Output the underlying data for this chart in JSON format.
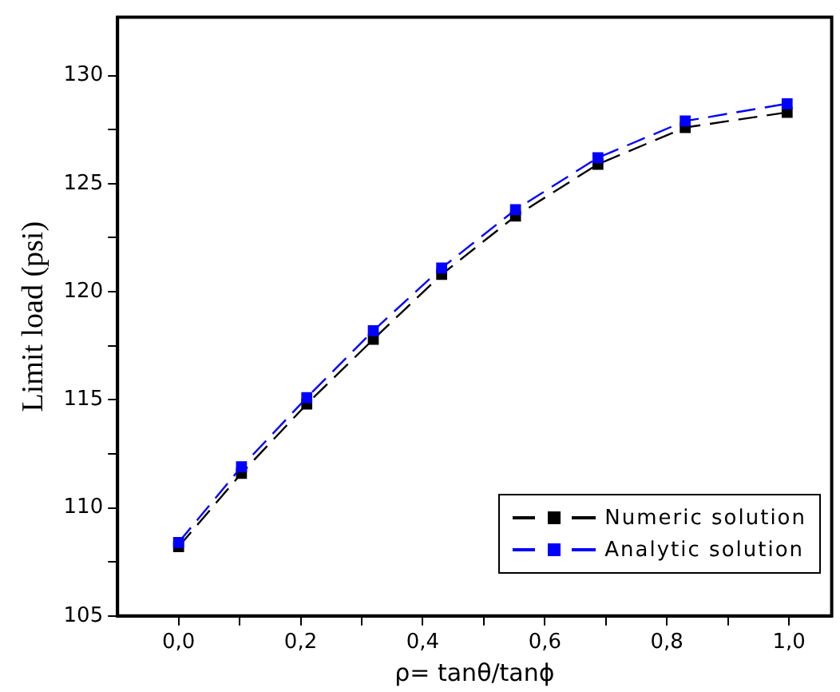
{
  "chart_data": {
    "type": "line",
    "xlabel": "ρ= tanθ/tanϕ",
    "ylabel": "Limit load (psi)",
    "xlim": [
      -0.1,
      1.07
    ],
    "ylim": [
      105,
      132.7
    ],
    "xticks": [
      {
        "value": 0,
        "label": "0,0"
      },
      {
        "value": 0.1,
        "label": null
      },
      {
        "value": 0.2,
        "label": "0,2"
      },
      {
        "value": 0.3,
        "label": null
      },
      {
        "value": 0.4,
        "label": "0,4"
      },
      {
        "value": 0.5,
        "label": null
      },
      {
        "value": 0.6,
        "label": "0,6"
      },
      {
        "value": 0.7,
        "label": null
      },
      {
        "value": 0.8,
        "label": "0,8"
      },
      {
        "value": 0.9,
        "label": null
      },
      {
        "value": 1,
        "label": "1,0"
      }
    ],
    "yticks": [
      105,
      {
        "value": 107.5,
        "label": null
      },
      110,
      {
        "value": 112.5,
        "label": null
      },
      115,
      {
        "value": 117.5,
        "label": null
      },
      120,
      {
        "value": 122.5,
        "label": null
      },
      125,
      {
        "value": 127.5,
        "label": null
      },
      130
    ],
    "x": [
      0,
      0.103,
      0.21,
      0.319,
      0.431,
      0.552,
      0.687,
      0.83,
      0.997
    ],
    "series": [
      {
        "name": "Numeric solution",
        "color": "#000000",
        "values": [
          108.2,
          111.6,
          114.8,
          117.8,
          120.8,
          123.5,
          125.9,
          127.6,
          128.3
        ]
      },
      {
        "name": "Analytic solution",
        "color": "#0000ff",
        "values": [
          108.4,
          111.9,
          115.1,
          118.2,
          121.1,
          123.8,
          126.2,
          127.9,
          128.7
        ]
      }
    ],
    "marker": "square",
    "line_style": "dashed",
    "grid": false,
    "legend": "bottom right"
  }
}
